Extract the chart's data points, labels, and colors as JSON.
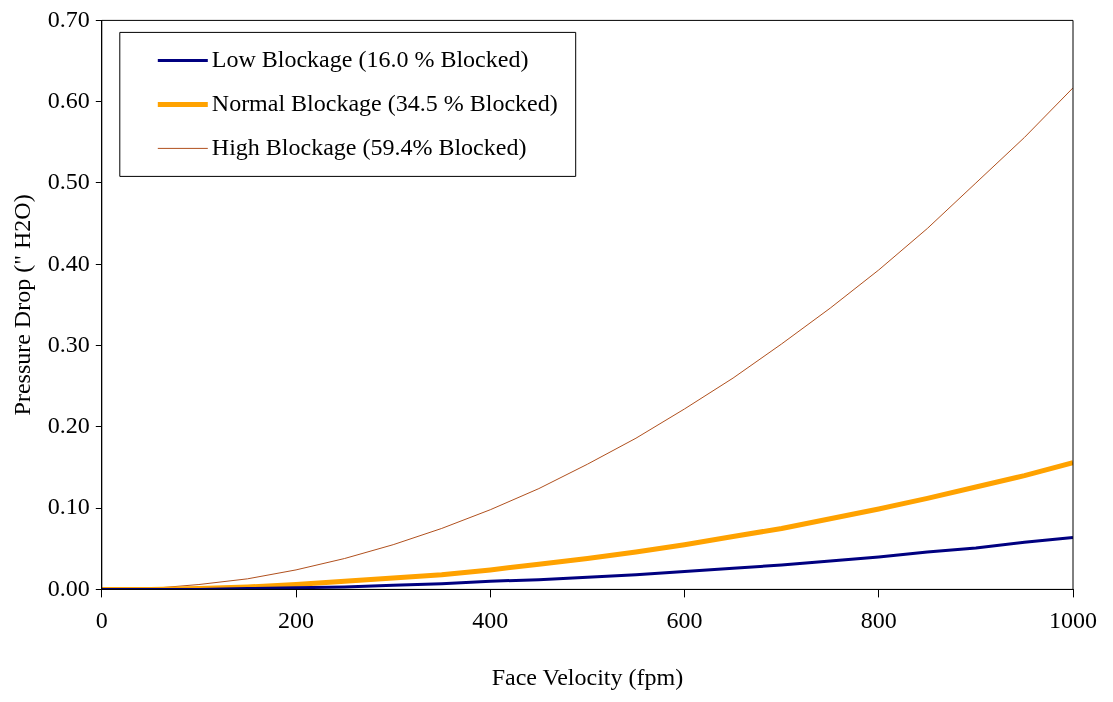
{
  "chart_data": {
    "type": "line",
    "xlabel": "Face Velocity (fpm)",
    "ylabel": "Pressure Drop (\" H2O)",
    "x": [
      0,
      50,
      100,
      150,
      200,
      250,
      300,
      350,
      400,
      450,
      500,
      550,
      600,
      650,
      700,
      750,
      800,
      850,
      900,
      950,
      1000
    ],
    "series": [
      {
        "name": "Low Blockage (16.0 % Blocked)",
        "color": "#000080",
        "values": [
          0,
          0,
          0,
          0.001,
          0.002,
          0.003,
          0.005,
          0.007,
          0.01,
          0.012,
          0.015,
          0.018,
          0.022,
          0.026,
          0.03,
          0.035,
          0.04,
          0.046,
          0.051,
          0.058,
          0.064
        ]
      },
      {
        "name": "Normal Blockage (34.5 % Blocked)",
        "color": "#ffa200",
        "values": [
          0,
          0,
          0.001,
          0.003,
          0.006,
          0.01,
          0.014,
          0.018,
          0.024,
          0.031,
          0.038,
          0.046,
          0.055,
          0.065,
          0.075,
          0.087,
          0.099,
          0.112,
          0.126,
          0.14,
          0.156
        ]
      },
      {
        "name": "High Blockage (59.4% Blocked)",
        "color": "#b0501e",
        "values": [
          0,
          0.001,
          0.006,
          0.013,
          0.024,
          0.038,
          0.055,
          0.075,
          0.098,
          0.124,
          0.154,
          0.186,
          0.222,
          0.26,
          0.302,
          0.346,
          0.393,
          0.444,
          0.5,
          0.556,
          0.617
        ]
      }
    ],
    "xlim": [
      0,
      1000
    ],
    "xticks": [
      0,
      200,
      400,
      600,
      800,
      1000
    ],
    "ylim": [
      0,
      0.7
    ],
    "yticks": [
      {
        "value": 0,
        "label": "0.00"
      },
      {
        "value": 0.1,
        "label": "0.10"
      },
      {
        "value": 0.2,
        "label": "0.20"
      },
      {
        "value": 0.3,
        "label": "0.30"
      },
      {
        "value": 0.4,
        "label": "0.40"
      },
      {
        "value": 0.5,
        "label": "0.50"
      },
      {
        "value": 0.6,
        "label": "0.60"
      },
      {
        "value": 0.7,
        "label": "0.70"
      }
    ],
    "grid": false,
    "legend": "top left",
    "marker": "none",
    "line_style": "solid"
  }
}
